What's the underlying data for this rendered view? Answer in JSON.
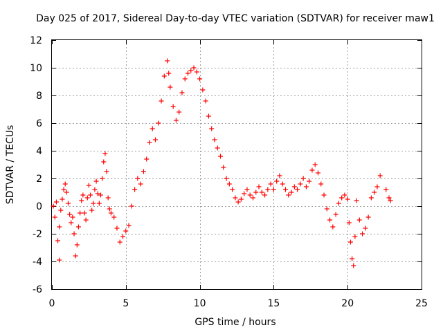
{
  "chart_data": {
    "type": "scatter",
    "title": "Day 025 of 2017, Sidereal Day-to-day VTEC variation (SDTVAR) for receiver maw1",
    "xlabel": "GPS time / hours",
    "ylabel": "SDTVAR / TECUs",
    "xlim": [
      0,
      25
    ],
    "ylim": [
      -6,
      12
    ],
    "xticks": [
      0,
      5,
      10,
      15,
      20,
      25
    ],
    "yticks": [
      -6,
      -4,
      -2,
      0,
      2,
      4,
      6,
      8,
      10,
      12
    ],
    "xtick_labels": [
      "0",
      "5",
      "10",
      "15",
      "20",
      "25"
    ],
    "ytick_labels": [
      "-6",
      "-4",
      "-2",
      "0",
      "2",
      "4",
      "6",
      "8",
      "10",
      "12"
    ],
    "grid": true,
    "marker": "+",
    "color": "#ff0000",
    "series": [
      {
        "name": "SDTVAR",
        "x": [
          0.1,
          0.2,
          0.3,
          0.4,
          0.5,
          0.5,
          0.6,
          0.7,
          0.8,
          0.9,
          1.0,
          1.1,
          1.2,
          1.3,
          1.4,
          1.5,
          1.6,
          1.7,
          1.8,
          1.9,
          2.0,
          2.1,
          2.2,
          2.3,
          2.4,
          2.5,
          2.6,
          2.7,
          2.8,
          2.9,
          3.0,
          3.1,
          3.2,
          3.3,
          3.4,
          3.5,
          3.6,
          3.7,
          3.8,
          3.9,
          4.0,
          4.2,
          4.4,
          4.6,
          4.8,
          5.0,
          5.2,
          5.4,
          5.6,
          5.8,
          6.0,
          6.2,
          6.4,
          6.6,
          6.8,
          7.0,
          7.2,
          7.4,
          7.6,
          7.8,
          7.9,
          8.0,
          8.2,
          8.4,
          8.6,
          8.8,
          9.0,
          9.2,
          9.4,
          9.6,
          9.8,
          10.0,
          10.2,
          10.4,
          10.6,
          10.8,
          11.0,
          11.2,
          11.4,
          11.6,
          11.8,
          12.0,
          12.2,
          12.4,
          12.6,
          12.8,
          13.0,
          13.2,
          13.4,
          13.6,
          13.8,
          14.0,
          14.2,
          14.4,
          14.6,
          14.8,
          15.0,
          15.2,
          15.4,
          15.6,
          15.8,
          16.0,
          16.2,
          16.4,
          16.6,
          16.8,
          17.0,
          17.2,
          17.4,
          17.6,
          17.8,
          18.0,
          18.2,
          18.4,
          18.6,
          18.8,
          19.0,
          19.2,
          19.4,
          19.6,
          19.8,
          20.0,
          20.1,
          20.2,
          20.3,
          20.4,
          20.5,
          20.6,
          20.8,
          21.0,
          21.2,
          21.4,
          21.6,
          21.8,
          22.0,
          22.2,
          22.6,
          22.8,
          22.9
        ],
        "y": [
          0.0,
          -0.8,
          0.3,
          -2.5,
          -3.9,
          -1.5,
          -0.3,
          0.5,
          1.2,
          1.6,
          1.0,
          0.2,
          -0.6,
          -1.2,
          -0.8,
          -2.0,
          -3.6,
          -2.8,
          -1.5,
          -0.5,
          0.4,
          0.8,
          -0.5,
          -1.0,
          0.6,
          1.5,
          0.8,
          -0.3,
          0.2,
          1.2,
          1.8,
          0.9,
          0.2,
          0.8,
          2.0,
          3.2,
          3.8,
          2.5,
          0.6,
          -0.2,
          -0.5,
          -0.8,
          -1.6,
          -2.6,
          -2.2,
          -1.8,
          -1.4,
          0.0,
          1.2,
          2.0,
          1.6,
          2.5,
          3.4,
          4.6,
          5.6,
          4.8,
          6.0,
          7.6,
          9.4,
          10.5,
          9.6,
          8.6,
          7.2,
          6.2,
          6.8,
          8.2,
          9.2,
          9.6,
          9.8,
          10.0,
          9.7,
          9.2,
          8.4,
          7.6,
          6.5,
          5.6,
          4.8,
          4.2,
          3.6,
          2.8,
          2.0,
          1.6,
          1.2,
          0.6,
          0.3,
          0.5,
          0.9,
          1.2,
          0.8,
          0.6,
          1.0,
          1.4,
          1.0,
          0.8,
          1.2,
          1.6,
          1.2,
          1.8,
          2.2,
          1.6,
          1.2,
          0.8,
          1.0,
          1.4,
          1.2,
          1.6,
          2.0,
          1.4,
          1.8,
          2.6,
          3.0,
          2.4,
          1.6,
          0.8,
          -0.2,
          -1.0,
          -1.5,
          -0.6,
          0.2,
          0.6,
          0.8,
          0.5,
          -1.2,
          -2.6,
          -3.8,
          -4.3,
          -2.2,
          0.4,
          -1.0,
          -2.0,
          -1.6,
          -0.8,
          0.6,
          1.0,
          1.4,
          2.2,
          1.2,
          0.6,
          0.4
        ]
      }
    ]
  }
}
